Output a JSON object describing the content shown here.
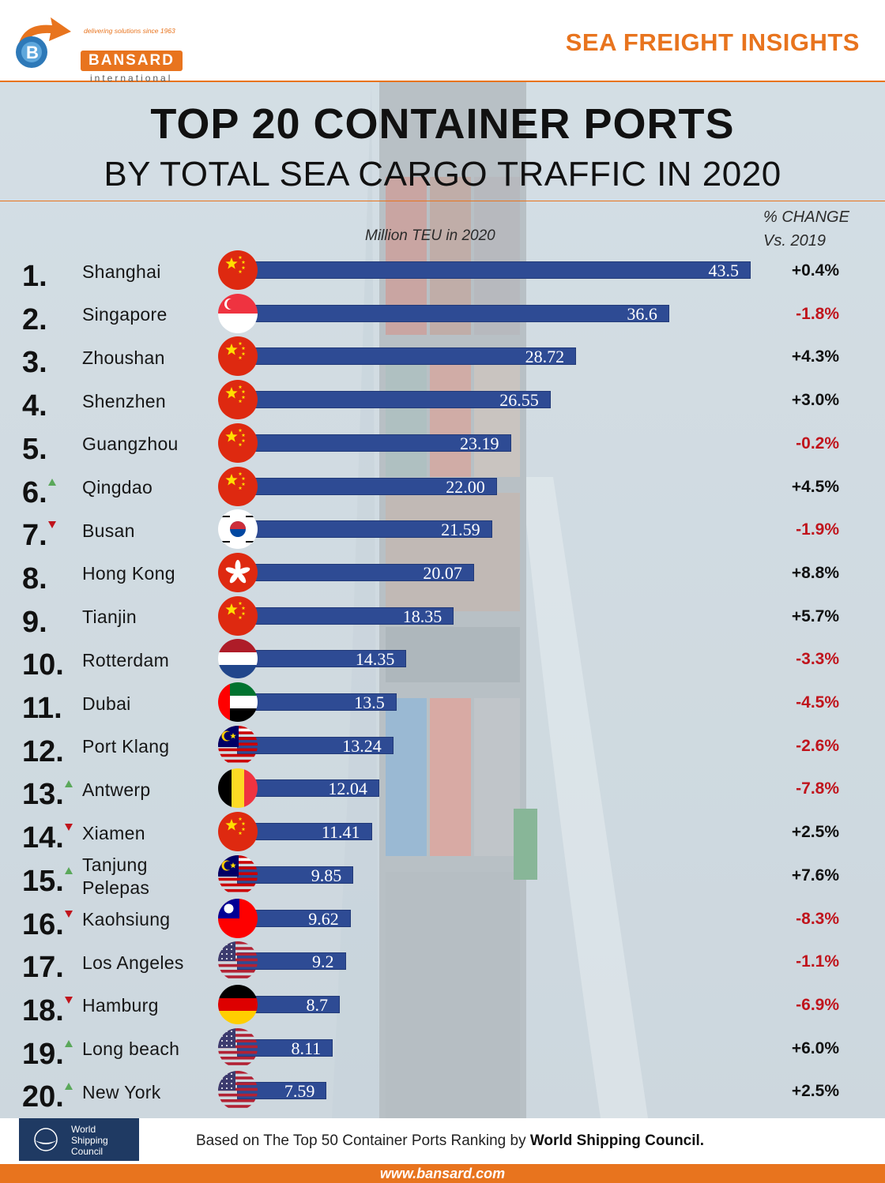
{
  "brand": {
    "tagline": "delivering solutions since 1963",
    "name": "BANSARD",
    "sub": "international",
    "header_title": "SEA FREIGHT INSIGHTS",
    "colors": {
      "accent": "#e8741e",
      "bar": "#2e4b94",
      "positive": "#111111",
      "negative": "#c0141c",
      "rank_up": "#5aa85a",
      "rank_down": "#c0141c"
    }
  },
  "chart_data": {
    "type": "bar",
    "orientation": "horizontal",
    "title": "TOP 20 CONTAINER PORTS",
    "subtitle": "BY TOTAL SEA CARGO TRAFFIC IN 2020",
    "xlabel": "Million TEU in 2020",
    "change_header": [
      "% CHANGE",
      "Vs. 2019"
    ],
    "grid": false,
    "xlim": [
      0,
      43.5
    ],
    "categories": [
      "Shanghai",
      "Singapore",
      "Zhoushan",
      "Shenzhen",
      "Guangzhou",
      "Qingdao",
      "Busan",
      "Hong Kong",
      "Tianjin",
      "Rotterdam",
      "Dubai",
      "Port Klang",
      "Antwerp",
      "Xiamen",
      "Tanjung Pelepas",
      "Kaohsiung",
      "Los Angeles",
      "Hamburg",
      "Long beach",
      "New York"
    ],
    "ranks": [
      "1.",
      "2.",
      "3.",
      "4.",
      "5.",
      "6.",
      "7.",
      "8.",
      "9.",
      "10.",
      "11.",
      "12.",
      "13.",
      "14.",
      "15.",
      "16.",
      "17.",
      "18.",
      "19.",
      "20."
    ],
    "value_labels": [
      "43.5",
      "36.6",
      "28.72",
      "26.55",
      "23.19",
      "22.00",
      "21.59",
      "20.07",
      "18.35",
      "14.35",
      "13.5",
      "13.24",
      "12.04",
      "11.41",
      "9.85",
      "9.62",
      "9.2",
      "8.7",
      "8.11",
      "7.59"
    ],
    "values": [
      43.5,
      36.6,
      28.72,
      26.55,
      23.19,
      22.0,
      21.59,
      20.07,
      18.35,
      14.35,
      13.5,
      13.24,
      12.04,
      11.41,
      9.85,
      9.62,
      9.2,
      8.7,
      8.11,
      7.59
    ],
    "pct_change": [
      "+0.4%",
      "-1.8%",
      "+4.3%",
      "+3.0%",
      "-0.2%",
      "+4.5%",
      "-1.9%",
      "+8.8%",
      "+5.7%",
      "-3.3%",
      "-4.5%",
      "-2.6%",
      "-7.8%",
      "+2.5%",
      "+7.6%",
      "-8.3%",
      "-1.1%",
      "-6.9%",
      "+6.0%",
      "+2.5%"
    ],
    "rank_move": [
      "",
      "",
      "",
      "",
      "",
      "up",
      "down",
      "",
      "",
      "",
      "",
      "",
      "up",
      "down",
      "up",
      "down",
      "",
      "down",
      "up",
      "up"
    ],
    "flags": [
      "china",
      "singapore",
      "china",
      "china",
      "china",
      "china",
      "south-korea",
      "hong-kong",
      "china",
      "netherlands",
      "uae",
      "malaysia",
      "belgium",
      "china",
      "malaysia",
      "taiwan",
      "usa",
      "germany",
      "usa",
      "usa"
    ]
  },
  "footer": {
    "wsc_name": [
      "World",
      "Shipping",
      "Council"
    ],
    "source_prefix": "Based on The Top 50 Container Ports Ranking by ",
    "source_bold": "World Shipping Council.",
    "url": "www.bansard.com"
  }
}
